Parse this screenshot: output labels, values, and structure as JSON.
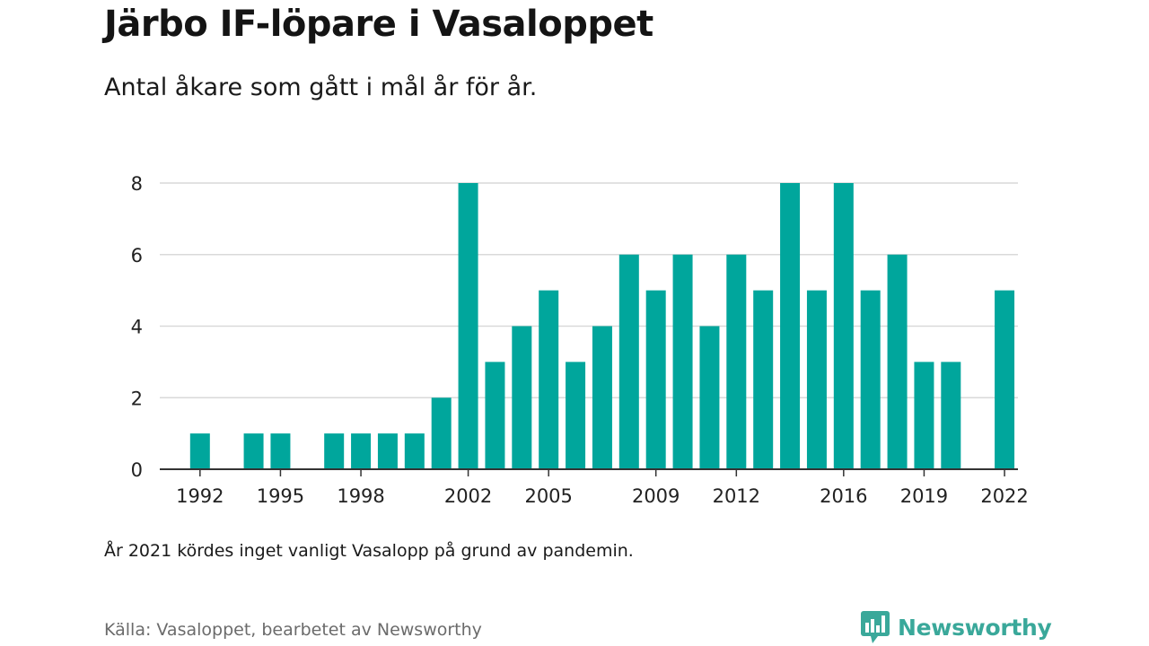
{
  "header": {
    "title": "Järbo IF-löpare i Vasaloppet",
    "subtitle": "Antal åkare som gått i mål år för år."
  },
  "footer": {
    "note": "År 2021 kördes inget vanligt Vasalopp på grund av pandemin.",
    "source": "Källa: Vasaloppet, bearbetet av Newsworthy",
    "logo_text": "Newsworthy",
    "logo_icon": "newsworthy-logo-icon"
  },
  "colors": {
    "bar": "#00a69c",
    "grid": "#d9d9d9",
    "baseline": "#333333",
    "logo": "#3aa89a"
  },
  "chart_data": {
    "type": "bar",
    "title": "Järbo IF-löpare i Vasaloppet",
    "subtitle": "Antal åkare som gått i mål år för år.",
    "xlabel": "",
    "ylabel": "",
    "ylim": [
      0,
      8
    ],
    "yticks": [
      0,
      2,
      4,
      6,
      8
    ],
    "grid": true,
    "categories": [
      1991,
      1992,
      1993,
      1994,
      1995,
      1996,
      1997,
      1998,
      1999,
      2000,
      2001,
      2002,
      2003,
      2004,
      2005,
      2006,
      2007,
      2008,
      2009,
      2010,
      2011,
      2012,
      2013,
      2014,
      2015,
      2016,
      2017,
      2018,
      2019,
      2020,
      2021,
      2022
    ],
    "values": [
      0,
      1,
      0,
      1,
      1,
      0,
      1,
      1,
      1,
      1,
      2,
      8,
      3,
      4,
      5,
      3,
      4,
      6,
      5,
      6,
      4,
      6,
      5,
      8,
      5,
      8,
      5,
      6,
      3,
      3,
      0,
      5
    ],
    "xtick_labels": [
      "1992",
      "1995",
      "1998",
      "2002",
      "2005",
      "2009",
      "2012",
      "2016",
      "2019",
      "2022"
    ]
  }
}
